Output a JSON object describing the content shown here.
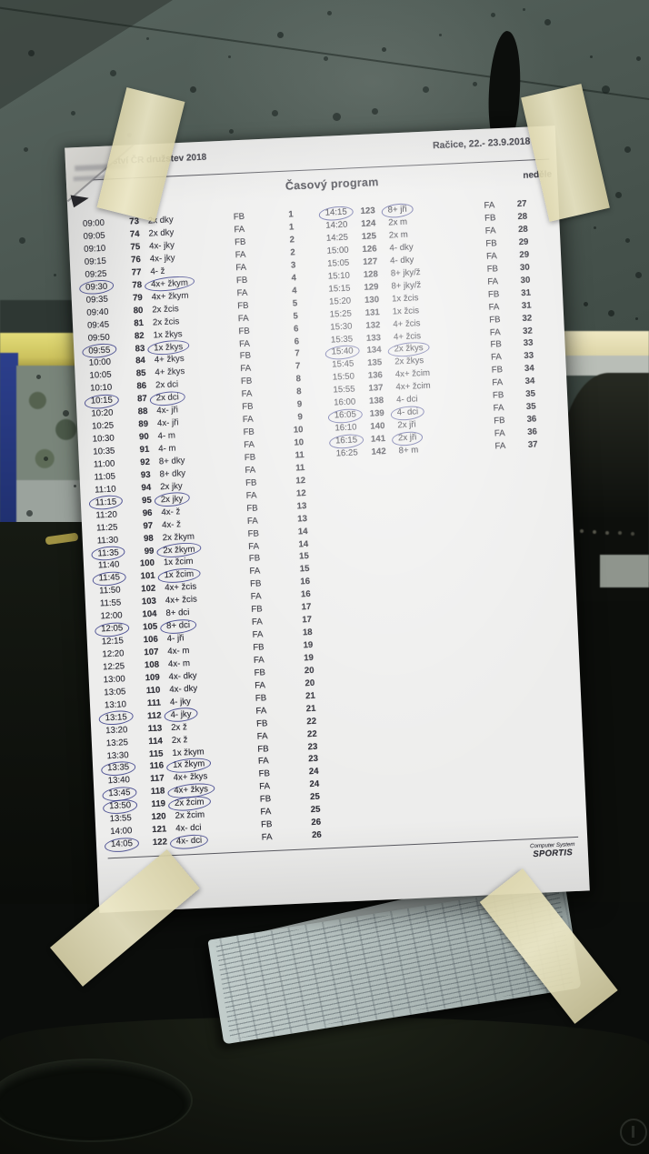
{
  "header": {
    "event_title_partial": "ství ČR družstev 2018",
    "location_date": "Račice,  22.- 23.9.2018",
    "program_title": "Časový program",
    "day_label": "neděle"
  },
  "footer": {
    "brand_top": "Computer System",
    "brand_name": "SPORTIS"
  },
  "schedule": {
    "columns": [
      "time",
      "race_number",
      "boat_class",
      "heat",
      "final_number"
    ],
    "left": [
      [
        "09:00",
        "73",
        "2x dky",
        "FB",
        "1",
        0,
        0
      ],
      [
        "09:05",
        "74",
        "2x dky",
        "FA",
        "1",
        0,
        0
      ],
      [
        "09:10",
        "75",
        "4x- jky",
        "FB",
        "2",
        0,
        0
      ],
      [
        "09:15",
        "76",
        "4x- jky",
        "FA",
        "2",
        0,
        0
      ],
      [
        "09:25",
        "77",
        "4- ž",
        "FA",
        "3",
        0,
        0
      ],
      [
        "09:30",
        "78",
        "4x+ žkym",
        "FB",
        "4",
        1,
        1
      ],
      [
        "09:35",
        "79",
        "4x+ žkym",
        "FA",
        "4",
        0,
        0
      ],
      [
        "09:40",
        "80",
        "2x žcis",
        "FB",
        "5",
        0,
        0
      ],
      [
        "09:45",
        "81",
        "2x žcis",
        "FA",
        "5",
        0,
        0
      ],
      [
        "09:50",
        "82",
        "1x žkys",
        "FB",
        "6",
        0,
        0
      ],
      [
        "09:55",
        "83",
        "1x žkys",
        "FA",
        "6",
        1,
        1
      ],
      [
        "10:00",
        "84",
        "4+ žkys",
        "FB",
        "7",
        0,
        0
      ],
      [
        "10:05",
        "85",
        "4+ žkys",
        "FA",
        "7",
        0,
        0
      ],
      [
        "10:10",
        "86",
        "2x dci",
        "FB",
        "8",
        0,
        0
      ],
      [
        "10:15",
        "87",
        "2x dci",
        "FA",
        "8",
        1,
        1
      ],
      [
        "10:20",
        "88",
        "4x- jři",
        "FB",
        "9",
        0,
        0
      ],
      [
        "10:25",
        "89",
        "4x- jři",
        "FA",
        "9",
        0,
        0
      ],
      [
        "10:30",
        "90",
        "4- m",
        "FB",
        "10",
        0,
        0
      ],
      [
        "10:35",
        "91",
        "4- m",
        "FA",
        "10",
        0,
        0
      ],
      [
        "11:00",
        "92",
        "8+ dky",
        "FB",
        "11",
        0,
        0
      ],
      [
        "11:05",
        "93",
        "8+ dky",
        "FA",
        "11",
        0,
        0
      ],
      [
        "11:10",
        "94",
        "2x jky",
        "FB",
        "12",
        0,
        0
      ],
      [
        "11:15",
        "95",
        "2x jky",
        "FA",
        "12",
        1,
        1
      ],
      [
        "11:20",
        "96",
        "4x- ž",
        "FB",
        "13",
        0,
        0
      ],
      [
        "11:25",
        "97",
        "4x- ž",
        "FA",
        "13",
        0,
        0
      ],
      [
        "11:30",
        "98",
        "2x žkym",
        "FB",
        "14",
        0,
        0
      ],
      [
        "11:35",
        "99",
        "2x žkym",
        "FA",
        "14",
        1,
        1
      ],
      [
        "11:40",
        "100",
        "1x žcim",
        "FB",
        "15",
        0,
        0
      ],
      [
        "11:45",
        "101",
        "1x žcim",
        "FA",
        "15",
        1,
        1
      ],
      [
        "11:50",
        "102",
        "4x+ žcis",
        "FB",
        "16",
        0,
        0
      ],
      [
        "11:55",
        "103",
        "4x+ žcis",
        "FA",
        "16",
        0,
        0
      ],
      [
        "12:00",
        "104",
        "8+ dci",
        "FB",
        "17",
        0,
        0
      ],
      [
        "12:05",
        "105",
        "8+ dci",
        "FA",
        "17",
        1,
        1
      ],
      [
        "12:15",
        "106",
        "4- jři",
        "FA",
        "18",
        0,
        0
      ],
      [
        "12:20",
        "107",
        "4x- m",
        "FB",
        "19",
        0,
        0
      ],
      [
        "12:25",
        "108",
        "4x- m",
        "FA",
        "19",
        0,
        0
      ],
      [
        "13:00",
        "109",
        "4x- dky",
        "FB",
        "20",
        0,
        0
      ],
      [
        "13:05",
        "110",
        "4x- dky",
        "FA",
        "20",
        0,
        0
      ],
      [
        "13:10",
        "111",
        "4- jky",
        "FB",
        "21",
        0,
        0
      ],
      [
        "13:15",
        "112",
        "4- jky",
        "FA",
        "21",
        1,
        1
      ],
      [
        "13:20",
        "113",
        "2x ž",
        "FB",
        "22",
        0,
        0
      ],
      [
        "13:25",
        "114",
        "2x ž",
        "FA",
        "22",
        0,
        0
      ],
      [
        "13:30",
        "115",
        "1x žkym",
        "FB",
        "23",
        0,
        0
      ],
      [
        "13:35",
        "116",
        "1x žkym",
        "FA",
        "23",
        1,
        1
      ],
      [
        "13:40",
        "117",
        "4x+ žkys",
        "FB",
        "24",
        0,
        0
      ],
      [
        "13:45",
        "118",
        "4x+ žkys",
        "FA",
        "24",
        1,
        1
      ],
      [
        "13:50",
        "119",
        "2x žcim",
        "FB",
        "25",
        1,
        1
      ],
      [
        "13:55",
        "120",
        "2x žcim",
        "FA",
        "25",
        0,
        0
      ],
      [
        "14:00",
        "121",
        "4x- dci",
        "FB",
        "26",
        0,
        0
      ],
      [
        "14:05",
        "122",
        "4x- dci",
        "FA",
        "26",
        1,
        1
      ]
    ],
    "right": [
      [
        "14:15",
        "123",
        "8+ jři",
        "FA",
        "27",
        1,
        1
      ],
      [
        "14:20",
        "124",
        "2x m",
        "FB",
        "28",
        0,
        0
      ],
      [
        "14:25",
        "125",
        "2x m",
        "FA",
        "28",
        0,
        0
      ],
      [
        "15:00",
        "126",
        "4- dky",
        "FB",
        "29",
        0,
        0
      ],
      [
        "15:05",
        "127",
        "4- dky",
        "FA",
        "29",
        0,
        0
      ],
      [
        "15:10",
        "128",
        "8+ jky/ž",
        "FB",
        "30",
        0,
        0
      ],
      [
        "15:15",
        "129",
        "8+ jky/ž",
        "FA",
        "30",
        0,
        0
      ],
      [
        "15:20",
        "130",
        "1x žcis",
        "FB",
        "31",
        0,
        0
      ],
      [
        "15:25",
        "131",
        "1x žcis",
        "FA",
        "31",
        0,
        0
      ],
      [
        "15:30",
        "132",
        "4+ žcis",
        "FB",
        "32",
        0,
        0
      ],
      [
        "15:35",
        "133",
        "4+ žcis",
        "FA",
        "32",
        0,
        0
      ],
      [
        "15:40",
        "134",
        "2x žkys",
        "FB",
        "33",
        1,
        1
      ],
      [
        "15:45",
        "135",
        "2x žkys",
        "FA",
        "33",
        0,
        0
      ],
      [
        "15:50",
        "136",
        "4x+ žcim",
        "FB",
        "34",
        0,
        0
      ],
      [
        "15:55",
        "137",
        "4x+ žcim",
        "FA",
        "34",
        0,
        0
      ],
      [
        "16:00",
        "138",
        "4- dci",
        "FB",
        "35",
        0,
        0
      ],
      [
        "16:05",
        "139",
        "4- dci",
        "FA",
        "35",
        1,
        1
      ],
      [
        "16:10",
        "140",
        "2x jři",
        "FB",
        "36",
        0,
        0
      ],
      [
        "16:15",
        "141",
        "2x jři",
        "FA",
        "36",
        1,
        1
      ],
      [
        "16:25",
        "142",
        "8+ m",
        "FA",
        "37",
        0,
        0
      ]
    ]
  }
}
